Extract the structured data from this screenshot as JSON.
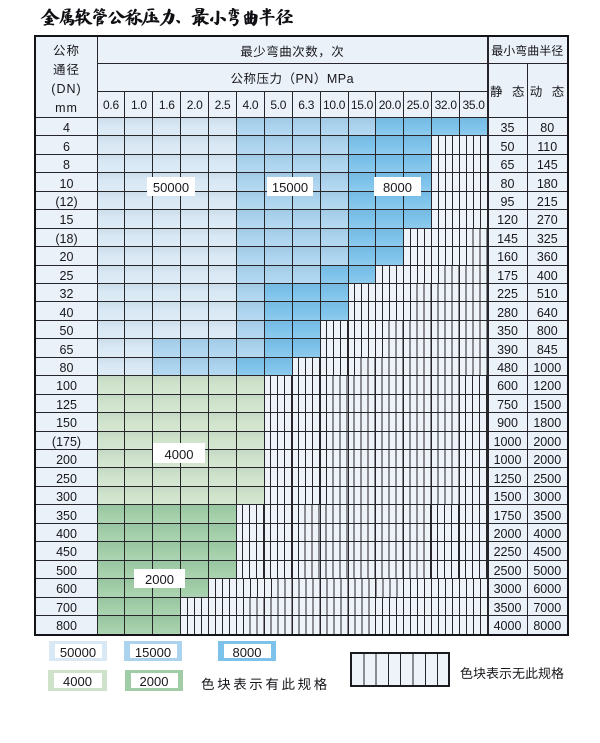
{
  "title": "金属软管公称压力、最小弯曲半径",
  "colors": {
    "light_blue": "#d8e8f4",
    "mid_blue": "#abd3ee",
    "dark_blue": "#7cc2ea",
    "light_green": "#cfe3cb",
    "dark_green": "#a0cda6",
    "header_bg": "#eaf1f8",
    "hatch_bg": "#eef3f9",
    "grid_line": "#26262b",
    "label_box_bg": "#ffffff"
  },
  "table": {
    "dn_header_lines": [
      "公称",
      "通径",
      "(DN)",
      "mm"
    ],
    "cycles_header": "最少弯曲次数，次",
    "pressure_header": "公称压力（PN）MPa",
    "radius_header": "最小弯曲半径",
    "static_header": "静 态",
    "dynamic_header": "动 态",
    "pressure_columns": [
      "0.6",
      "1.0",
      "1.6",
      "2.0",
      "2.5",
      "4.0",
      "5.0",
      "6.3",
      "10.0",
      "15.0",
      "20.0",
      "25.0",
      "32.0",
      "35.0"
    ],
    "cell_codes": {
      "L": "50000",
      "M": "15000",
      "D": "8000",
      "G": "4000",
      "E": "2000",
      "N": "no-spec"
    },
    "rows": [
      {
        "dn": "4",
        "cells": "LLLLLMMMMMDDDD",
        "static": "35",
        "dynamic": "80"
      },
      {
        "dn": "6",
        "cells": "LLLLLMMMMDDDNN",
        "static": "50",
        "dynamic": "110"
      },
      {
        "dn": "8",
        "cells": "LLLLLMMMMDDDNN",
        "static": "65",
        "dynamic": "145"
      },
      {
        "dn": "10",
        "cells": "LLLLLMMMMDDDNN",
        "static": "80",
        "dynamic": "180"
      },
      {
        "dn": "(12)",
        "cells": "LLLLLMMMMDDDNN",
        "static": "95",
        "dynamic": "215"
      },
      {
        "dn": "15",
        "cells": "LLLLLMMMMDDDNN",
        "static": "120",
        "dynamic": "270"
      },
      {
        "dn": "(18)",
        "cells": "LLLLLMMMMDDNNN",
        "static": "145",
        "dynamic": "325"
      },
      {
        "dn": "20",
        "cells": "LLLLLMMMMDDNNN",
        "static": "160",
        "dynamic": "360"
      },
      {
        "dn": "25",
        "cells": "LLLLLMMMDDNNNN",
        "static": "175",
        "dynamic": "400"
      },
      {
        "dn": "32",
        "cells": "LLLLLMDDDNNNNN",
        "static": "225",
        "dynamic": "510"
      },
      {
        "dn": "40",
        "cells": "LLLLLMDDDNNNNN",
        "static": "280",
        "dynamic": "640"
      },
      {
        "dn": "50",
        "cells": "LLLLLMDDNNNNNN",
        "static": "350",
        "dynamic": "800"
      },
      {
        "dn": "65",
        "cells": "LLMMMMDDNNNNNN",
        "static": "390",
        "dynamic": "845"
      },
      {
        "dn": "80",
        "cells": "LLMMMDDNNNNNNN",
        "static": "480",
        "dynamic": "1000"
      },
      {
        "dn": "100",
        "cells": "GGGGGGNNNNNNNN",
        "static": "600",
        "dynamic": "1200"
      },
      {
        "dn": "125",
        "cells": "GGGGGGNNNNNNNN",
        "static": "750",
        "dynamic": "1500"
      },
      {
        "dn": "150",
        "cells": "GGGGGGNNNNNNNN",
        "static": "900",
        "dynamic": "1800"
      },
      {
        "dn": "(175)",
        "cells": "GGGGGGNNNNNNNN",
        "static": "1000",
        "dynamic": "2000"
      },
      {
        "dn": "200",
        "cells": "GGGGGGNNNNNNNN",
        "static": "1000",
        "dynamic": "2000"
      },
      {
        "dn": "250",
        "cells": "GGGGGGNNNNNNNN",
        "static": "1250",
        "dynamic": "2500"
      },
      {
        "dn": "300",
        "cells": "GGGGGGNNNNNNNN",
        "static": "1500",
        "dynamic": "3000"
      },
      {
        "dn": "350",
        "cells": "EEEEENNNNNNNNN",
        "static": "1750",
        "dynamic": "3500"
      },
      {
        "dn": "400",
        "cells": "EEEEENNNNNNNNN",
        "static": "2000",
        "dynamic": "4000"
      },
      {
        "dn": "450",
        "cells": "EEEEENNNNNNNNN",
        "static": "2250",
        "dynamic": "4500"
      },
      {
        "dn": "500",
        "cells": "EEEEENNNNNNNNN",
        "static": "2500",
        "dynamic": "5000"
      },
      {
        "dn": "600",
        "cells": "EEEENNNNNNNNNN",
        "static": "3000",
        "dynamic": "6000"
      },
      {
        "dn": "700",
        "cells": "EEENNNNNNNNNNN",
        "static": "3500",
        "dynamic": "7000"
      },
      {
        "dn": "800",
        "cells": "EEENNNNNNNNNNN",
        "static": "4000",
        "dynamic": "8000"
      }
    ]
  },
  "overlay_labels": [
    {
      "text": "50000",
      "code": "L"
    },
    {
      "text": "15000",
      "code": "M"
    },
    {
      "text": "8000",
      "code": "D"
    },
    {
      "text": "4000",
      "code": "G"
    },
    {
      "text": "2000",
      "code": "E"
    }
  ],
  "legend": {
    "items": [
      {
        "label": "50000",
        "code": "L"
      },
      {
        "label": "15000",
        "code": "M"
      },
      {
        "label": "8000",
        "code": "D"
      },
      {
        "label": "4000",
        "code": "G"
      },
      {
        "label": "2000",
        "code": "E"
      }
    ],
    "has_spec_note": "色块表示有此规格",
    "no_spec_note": "色块表示无此规格"
  }
}
